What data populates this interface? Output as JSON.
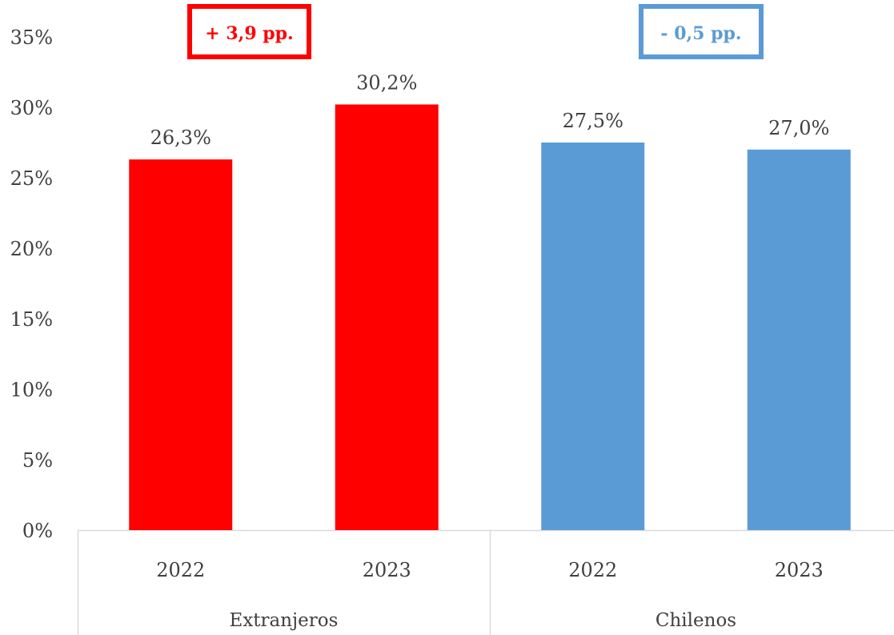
{
  "chart_data": {
    "type": "bar",
    "groups": [
      {
        "label": "Extranjeros",
        "color": "#ff0000",
        "categories": [
          "2022",
          "2023"
        ],
        "values": [
          26.3,
          30.2
        ],
        "value_labels": [
          "26,3%",
          "30,2%"
        ],
        "annotation": "+ 3,9 pp."
      },
      {
        "label": "Chilenos",
        "color": "#5b9bd5",
        "categories": [
          "2022",
          "2023"
        ],
        "values": [
          27.5,
          27.0
        ],
        "value_labels": [
          "27,5%",
          "27,0%"
        ],
        "annotation": "- 0,5 pp."
      }
    ],
    "ylim": [
      0,
      35
    ],
    "yticks": [
      0,
      5,
      10,
      15,
      20,
      25,
      30,
      35
    ],
    "ytick_labels": [
      "0%",
      "5%",
      "10%",
      "15%",
      "20%",
      "25%",
      "30%",
      "35%"
    ],
    "grid": false,
    "legend": false
  }
}
